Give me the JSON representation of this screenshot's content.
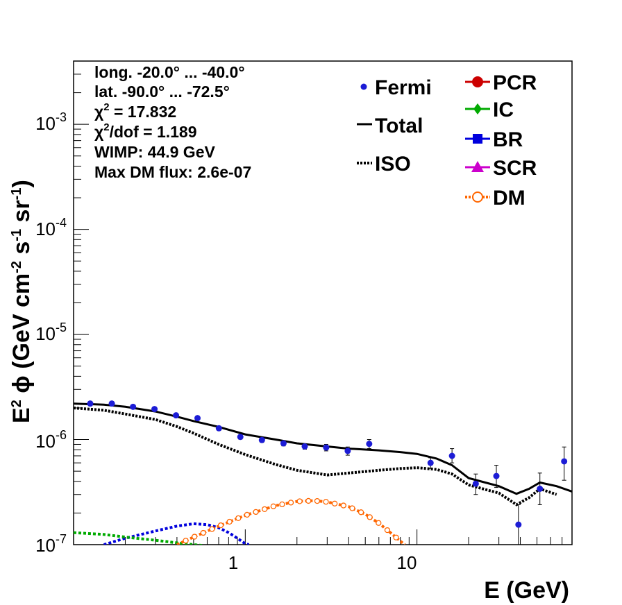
{
  "chart_data": {
    "type": "line",
    "xlabel": "E (GeV)",
    "ylabel": {
      "pre": "E",
      "sup1": "2",
      "mid": " ϕ (GeV cm",
      "sup2": "-2",
      "mid2": " s",
      "sup3": "-1",
      "mid3": " sr",
      "sup4": "-1",
      "post": ")"
    },
    "xscale": "log",
    "yscale": "log",
    "xlim": [
      0.1,
      80
    ],
    "ylim": [
      1e-07,
      0.004
    ],
    "x_ticklabels": [
      {
        "value": 1,
        "label": "1"
      },
      {
        "value": 10,
        "label": "10"
      }
    ],
    "y_ticklabels": [
      {
        "value": 1e-07,
        "base": "10",
        "exp": "-7"
      },
      {
        "value": 1e-06,
        "base": "10",
        "exp": "-6"
      },
      {
        "value": 1e-05,
        "base": "10",
        "exp": "-5"
      },
      {
        "value": 0.0001,
        "base": "10",
        "exp": "-4"
      },
      {
        "value": 0.001,
        "base": "10",
        "exp": "-3"
      }
    ],
    "info": {
      "long": "long. -20.0° ... -40.0°",
      "lat": "lat. -90.0° ... -72.5°",
      "chi2_pre": "χ",
      "chi2_sup": "2",
      "chi2_post": " = 17.832",
      "chidof_pre": "χ",
      "chidof_sup": "2",
      "chidof_post": "/dof = 1.189",
      "wimp": "WIMP: 44.9 GeV",
      "maxdm": "Max DM flux: 2.6e-07"
    },
    "legend": [
      {
        "name": "Fermi",
        "color": "#1c1cd6",
        "style": "marker"
      },
      {
        "name": "Total",
        "color": "#000000",
        "style": "line"
      },
      {
        "name": "ISO",
        "color": "#000000",
        "style": "dotted"
      },
      {
        "name": "PCR",
        "color": "#cc0000",
        "style": "marker-line"
      },
      {
        "name": "IC",
        "color": "#00aa00",
        "style": "marker-line"
      },
      {
        "name": "BR",
        "color": "#0000dd",
        "style": "marker-line"
      },
      {
        "name": "SCR",
        "color": "#cc00cc",
        "style": "marker-line"
      },
      {
        "name": "DM",
        "color": "#ff6600",
        "style": "marker-line"
      }
    ],
    "fermi": {
      "color": "#1c1cd6",
      "points": [
        {
          "x": 0.125,
          "y": 2.2e-06,
          "lo": 2.1e-06,
          "hi": 2.3e-06
        },
        {
          "x": 0.167,
          "y": 2.2e-06,
          "lo": 2.1e-06,
          "hi": 2.3e-06
        },
        {
          "x": 0.222,
          "y": 2.05e-06,
          "lo": 1.97e-06,
          "hi": 2.13e-06
        },
        {
          "x": 0.296,
          "y": 1.95e-06,
          "lo": 1.87e-06,
          "hi": 2.03e-06
        },
        {
          "x": 0.395,
          "y": 1.7e-06,
          "lo": 1.63e-06,
          "hi": 1.77e-06
        },
        {
          "x": 0.527,
          "y": 1.6e-06,
          "lo": 1.53e-06,
          "hi": 1.67e-06
        },
        {
          "x": 0.702,
          "y": 1.28e-06,
          "lo": 1.22e-06,
          "hi": 1.34e-06
        },
        {
          "x": 0.936,
          "y": 1.06e-06,
          "lo": 1.01e-06,
          "hi": 1.11e-06
        },
        {
          "x": 1.25,
          "y": 9.9e-07,
          "lo": 9.4e-07,
          "hi": 1.04e-06
        },
        {
          "x": 1.67,
          "y": 9.2e-07,
          "lo": 8.7e-07,
          "hi": 9.7e-07
        },
        {
          "x": 2.22,
          "y": 8.6e-07,
          "lo": 8.1e-07,
          "hi": 9.1e-07
        },
        {
          "x": 2.96,
          "y": 8.4e-07,
          "lo": 7.8e-07,
          "hi": 9e-07
        },
        {
          "x": 3.95,
          "y": 7.8e-07,
          "lo": 7.1e-07,
          "hi": 8.5e-07
        },
        {
          "x": 5.27,
          "y": 9.1e-07,
          "lo": 8.2e-07,
          "hi": 1e-06
        },
        {
          "x": 12.0,
          "y": 6e-07,
          "lo": 5.3e-07,
          "hi": 6.7e-07
        },
        {
          "x": 16.0,
          "y": 7e-07,
          "lo": 6e-07,
          "hi": 8.2e-07
        },
        {
          "x": 22.0,
          "y": 3.8e-07,
          "lo": 3e-07,
          "hi": 4.7e-07
        },
        {
          "x": 29.0,
          "y": 4.5e-07,
          "lo": 3.5e-07,
          "hi": 5.7e-07
        },
        {
          "x": 39.0,
          "y": 1.55e-07,
          "lo": 1e-07,
          "hi": 2.4e-07
        },
        {
          "x": 52.0,
          "y": 3.4e-07,
          "lo": 2.4e-07,
          "hi": 4.8e-07
        },
        {
          "x": 72.0,
          "y": 6.2e-07,
          "lo": 4.1e-07,
          "hi": 8.5e-07
        }
      ]
    },
    "series": [
      {
        "name": "Total",
        "color": "#000000",
        "style": "solid",
        "x": [
          0.1,
          0.15,
          0.2,
          0.3,
          0.4,
          0.5,
          0.7,
          1.0,
          1.5,
          2.0,
          3.0,
          4.0,
          6.0,
          8.0,
          10.0,
          13.0,
          16.0,
          20.0,
          25.0,
          30.0,
          38.0,
          45.0,
          52.0,
          65.0,
          80.0
        ],
        "y": [
          2.2e-06,
          2.15e-06,
          2.05e-06,
          1.85e-06,
          1.65e-06,
          1.5e-06,
          1.32e-06,
          1.12e-06,
          1e-06,
          9.2e-07,
          8.6e-07,
          8.2e-07,
          7.9e-07,
          7.6e-07,
          7.3e-07,
          6.6e-07,
          5.7e-07,
          4.3e-07,
          3.9e-07,
          3.6e-07,
          3.05e-07,
          3.4e-07,
          3.9e-07,
          3.6e-07,
          3.2e-07
        ]
      },
      {
        "name": "ISO",
        "color": "#000000",
        "style": "dotted",
        "x": [
          0.1,
          0.15,
          0.2,
          0.3,
          0.4,
          0.5,
          0.7,
          1.0,
          1.5,
          2.0,
          3.0,
          4.0,
          6.0,
          8.0,
          10.0,
          13.0,
          16.0,
          20.0,
          25.0,
          30.0,
          38.0,
          45.0,
          52.0,
          65.0
        ],
        "y": [
          2e-06,
          1.9e-06,
          1.75e-06,
          1.55e-06,
          1.33e-06,
          1.15e-06,
          9e-07,
          7.2e-07,
          5.8e-07,
          5.1e-07,
          4.6e-07,
          4.8e-07,
          5.1e-07,
          5.3e-07,
          5.4e-07,
          5.2e-07,
          4.7e-07,
          3.7e-07,
          3.35e-07,
          3.1e-07,
          2.4e-07,
          2.8e-07,
          3.4e-07,
          3e-07
        ]
      },
      {
        "name": "BR",
        "color": "#0000dd",
        "style": "dashed",
        "x": [
          0.15,
          0.2,
          0.3,
          0.4,
          0.5,
          0.6,
          0.7,
          0.8,
          0.9,
          1.0,
          1.05
        ],
        "y": [
          1e-07,
          1.15e-07,
          1.35e-07,
          1.5e-07,
          1.58e-07,
          1.55e-07,
          1.45e-07,
          1.3e-07,
          1.15e-07,
          1.02e-07,
          1e-07
        ]
      },
      {
        "name": "IC",
        "color": "#00aa00",
        "style": "dashed",
        "x": [
          0.1,
          0.15,
          0.2,
          0.3,
          0.4,
          0.5,
          0.57
        ],
        "y": [
          1.3e-07,
          1.25e-07,
          1.18e-07,
          1.1e-07,
          1.04e-07,
          1e-07,
          9.8e-08
        ]
      },
      {
        "name": "DM",
        "color": "#ff6600",
        "style": "dashed",
        "x": [
          0.4,
          0.5,
          0.7,
          1.0,
          1.5,
          2.0,
          2.5,
          3.0,
          4.0,
          5.0,
          6.0,
          7.0,
          8.0,
          8.5
        ],
        "y": [
          1e-07,
          1.18e-07,
          1.5e-07,
          1.9e-07,
          2.35e-07,
          2.58e-07,
          2.62e-07,
          2.55e-07,
          2.3e-07,
          1.95e-07,
          1.6e-07,
          1.3e-07,
          1.08e-07,
          1e-07
        ]
      }
    ]
  }
}
